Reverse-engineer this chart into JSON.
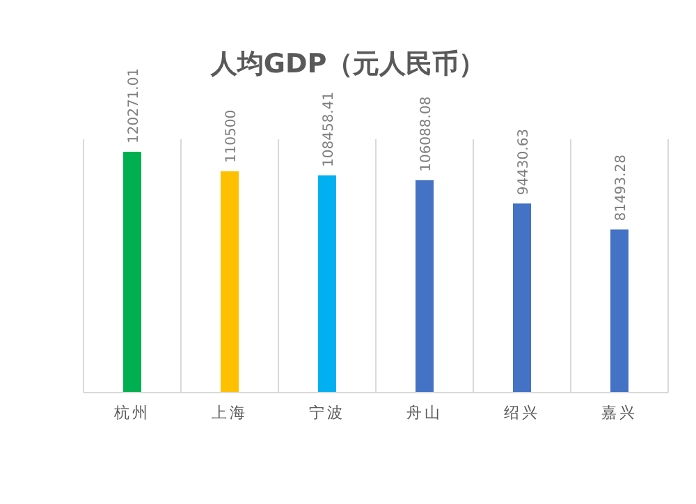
{
  "chart_data": {
    "type": "bar",
    "title": "人均GDP（元人民币）",
    "categories": [
      "杭州",
      "上海",
      "宁波",
      "舟山",
      "绍兴",
      "嘉兴"
    ],
    "values": [
      120271.01,
      110500,
      108458.41,
      106088.08,
      94430.63,
      81493.28
    ],
    "colors": [
      "#00b050",
      "#ffc000",
      "#00b0f0",
      "#4472c4",
      "#4472c4",
      "#4472c4"
    ],
    "data_labels": true,
    "grid": "x"
  }
}
